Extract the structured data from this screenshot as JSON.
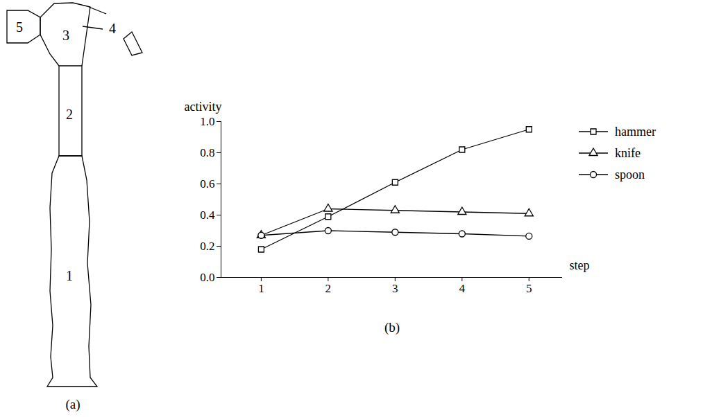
{
  "chart_data": {
    "type": "line",
    "title": "(b)",
    "xlabel": "step",
    "ylabel": "activity",
    "x": [
      1,
      2,
      3,
      4,
      5
    ],
    "series": [
      {
        "name": "hammer",
        "color": "#000000",
        "marker": "square",
        "values": [
          0.18,
          0.39,
          0.61,
          0.82,
          0.95
        ]
      },
      {
        "name": "knife",
        "color": "#000000",
        "marker": "triangle",
        "values": [
          0.27,
          0.44,
          0.43,
          0.42,
          0.41
        ]
      },
      {
        "name": "spoon",
        "color": "#000000",
        "marker": "circle",
        "values": [
          0.27,
          0.3,
          0.29,
          0.28,
          0.265
        ]
      }
    ],
    "xlim": [
      0.4,
      5.5
    ],
    "xticks": [
      1,
      2,
      3,
      4,
      5
    ],
    "ylim": [
      0,
      1
    ],
    "yticks": [
      {
        "value": 0,
        "label": "0.0"
      },
      0.2,
      0.4,
      0.6,
      0.8,
      {
        "value": 1,
        "label": "1.0"
      }
    ],
    "grid": false,
    "legend": "right"
  },
  "diagram": {
    "caption": "(a)",
    "parts": [
      "1",
      "2",
      "3",
      "4",
      "5"
    ]
  }
}
